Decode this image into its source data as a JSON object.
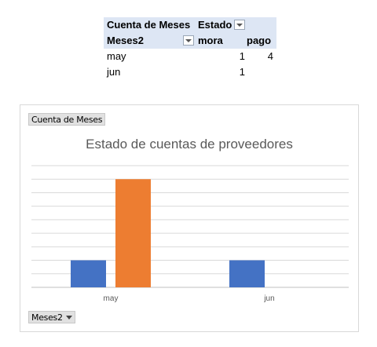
{
  "pivot": {
    "values_header": "Cuenta de Meses",
    "column_field": "Estado",
    "row_field": "Meses2",
    "columns": [
      "mora",
      "pago"
    ],
    "rows": [
      {
        "label": "may",
        "mora": "1",
        "pago": "4"
      },
      {
        "label": "jun",
        "mora": "1",
        "pago": ""
      }
    ]
  },
  "chart": {
    "values_button": "Cuenta de Meses",
    "axis_button": "Meses2",
    "colors": {
      "mora": "#4472c4",
      "pago": "#ed7d31"
    }
  },
  "chart_data": {
    "type": "bar",
    "title": "Estado de cuentas de proveedores",
    "categories": [
      "may",
      "jun"
    ],
    "series": [
      {
        "name": "mora",
        "values": [
          1,
          1
        ]
      },
      {
        "name": "pago",
        "values": [
          4,
          0
        ]
      }
    ],
    "ylim": [
      0,
      4.5
    ],
    "grid": true,
    "legend": "none"
  }
}
